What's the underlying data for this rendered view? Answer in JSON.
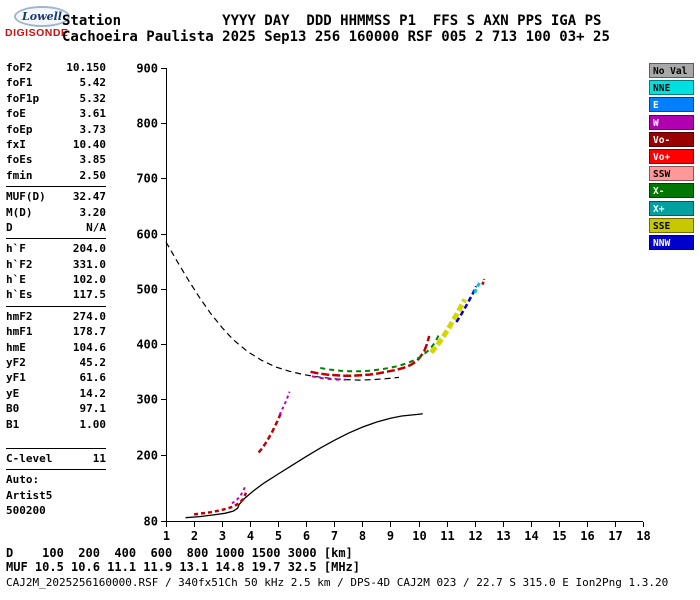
{
  "logo": {
    "name": "Lowell",
    "product": "DIGISONDE"
  },
  "header": {
    "fields_row": "Station            YYYY DAY  DDD HHMMSS P1  FFS S AXN PPS IGA PS",
    "values_row": "Cachoeira Paulista 2025 Sep13 256 160000 RSF 005 2 713 100 03+ 25"
  },
  "params": {
    "groups": [
      {
        "rows": [
          [
            "foF2",
            "10.150"
          ],
          [
            "foF1",
            "5.42"
          ],
          [
            "foF1p",
            "5.32"
          ],
          [
            "foE",
            "3.61"
          ],
          [
            "foEp",
            "3.73"
          ],
          [
            "fxI",
            "10.40"
          ],
          [
            "foEs",
            "3.85"
          ],
          [
            "fmin",
            "2.50"
          ]
        ]
      },
      {
        "rows": [
          [
            "MUF(D)",
            "32.47"
          ],
          [
            "M(D)",
            "3.20"
          ],
          [
            "D",
            "N/A"
          ]
        ]
      },
      {
        "rows": [
          [
            "h`F",
            "204.0"
          ],
          [
            "h`F2",
            "331.0"
          ],
          [
            "h`E",
            "102.0"
          ],
          [
            "h`Es",
            "117.5"
          ]
        ]
      },
      {
        "rows": [
          [
            "hmF2",
            "274.0"
          ],
          [
            "hmF1",
            "178.7"
          ],
          [
            "hmE",
            "104.6"
          ],
          [
            "yF2",
            "45.2"
          ],
          [
            "yF1",
            "61.6"
          ],
          [
            "yE",
            "14.2"
          ],
          [
            "B0",
            "97.1"
          ],
          [
            "B1",
            "1.00"
          ]
        ],
        "gap_after": true
      },
      {
        "rows": [
          [
            "C-level",
            "11"
          ]
        ]
      }
    ],
    "footer": [
      "Auto:",
      "Artist5",
      "500200"
    ]
  },
  "legend": {
    "items": [
      {
        "label": "No Val",
        "color": "#A8A8A8",
        "text": "#000000"
      },
      {
        "label": "NNE",
        "color": "#00E0E0",
        "text": "#000000"
      },
      {
        "label": "E",
        "color": "#0080FF",
        "text": "#FFFFFF"
      },
      {
        "label": "W",
        "color": "#B000B0",
        "text": "#FFFFFF"
      },
      {
        "label": "Vo-",
        "color": "#990000",
        "text": "#FFFFFF"
      },
      {
        "label": "Vo+",
        "color": "#FF0000",
        "text": "#FFFFFF"
      },
      {
        "label": "SSW",
        "color": "#FF9999",
        "text": "#000000"
      },
      {
        "label": "X-",
        "color": "#007700",
        "text": "#FFFFFF"
      },
      {
        "label": "X+",
        "color": "#00A0A0",
        "text": "#FFFFFF"
      },
      {
        "label": "SSE",
        "color": "#C8C800",
        "text": "#000000"
      },
      {
        "label": "NNW",
        "color": "#0000CC",
        "text": "#FFFFFF"
      }
    ]
  },
  "footer": {
    "d_row": "D    100  200  400  600  800 1000 1500 3000 [km]",
    "muf_row": "MUF 10.5 10.6 11.1 11.9 13.1 14.8 19.7 32.5 [MHz]",
    "status": "CAJ2M_2025256160000.RSF / 340fx51Ch 50 kHz 2.5 km / DPS-4D CAJ2M 023 / 22.7 S 315.0 E Ion2Png 1.3.20"
  },
  "chart_data": {
    "type": "scatter",
    "title": "Digisonde ionogram, Cachoeira Paulista, 2025 Sep13 256 160000",
    "xlabel": "[MHz]",
    "ylabel": "[km]",
    "xlim": [
      1,
      18
    ],
    "ylim": [
      80,
      900
    ],
    "x_ticks": [
      1,
      2,
      3,
      4,
      5,
      6,
      7,
      8,
      9,
      10,
      11,
      12,
      13,
      14,
      15,
      16,
      17,
      18
    ],
    "y_ticks": [
      80,
      200,
      300,
      400,
      500,
      600,
      700,
      800,
      900
    ],
    "grid": false,
    "legend_position": "right",
    "series": [
      {
        "name": "transmission-curve",
        "color": "#000000",
        "width": 1.2,
        "dash": "6 4",
        "points": [
          [
            1.0,
            585
          ],
          [
            1.4,
            550
          ],
          [
            1.8,
            516
          ],
          [
            2.2,
            484
          ],
          [
            2.6,
            455
          ],
          [
            3.0,
            430
          ],
          [
            3.4,
            408
          ],
          [
            3.9,
            387
          ],
          [
            4.4,
            371
          ],
          [
            4.9,
            359
          ],
          [
            5.4,
            351
          ],
          [
            5.9,
            345
          ],
          [
            6.4,
            341
          ],
          [
            6.9,
            338
          ],
          [
            7.4,
            336
          ],
          [
            7.9,
            335
          ],
          [
            8.4,
            336
          ],
          [
            8.9,
            338
          ],
          [
            9.3,
            340
          ]
        ]
      },
      {
        "name": "true-height-profile",
        "color": "#000000",
        "width": 1.3,
        "dash": "",
        "points": [
          [
            1.7,
            86
          ],
          [
            2.2,
            88
          ],
          [
            2.7,
            91
          ],
          [
            3.1,
            94
          ],
          [
            3.4,
            98
          ],
          [
            3.55,
            103
          ],
          [
            3.61,
            110
          ],
          [
            3.8,
            121
          ],
          [
            4.1,
            134
          ],
          [
            4.5,
            149
          ],
          [
            5.0,
            165
          ],
          [
            5.5,
            181
          ],
          [
            6.0,
            197
          ],
          [
            6.5,
            212
          ],
          [
            7.0,
            226
          ],
          [
            7.5,
            239
          ],
          [
            8.0,
            250
          ],
          [
            8.5,
            259
          ],
          [
            9.0,
            266
          ],
          [
            9.4,
            270
          ],
          [
            9.8,
            272
          ],
          [
            10.05,
            273.5
          ],
          [
            10.15,
            274
          ]
        ]
      },
      {
        "name": "e-trace-omode",
        "color": "#C00000",
        "width": 2.5,
        "dash": "4 3",
        "points": [
          [
            2.0,
            92
          ],
          [
            2.3,
            94
          ],
          [
            2.6,
            96
          ],
          [
            2.9,
            99
          ],
          [
            3.15,
            102
          ],
          [
            3.4,
            106
          ],
          [
            3.6,
            112
          ],
          [
            3.75,
            120
          ],
          [
            3.85,
            131
          ]
        ]
      },
      {
        "name": "e-trace-wmode",
        "color": "#C000C0",
        "width": 2,
        "dash": "3 3",
        "points": [
          [
            3.35,
            112
          ],
          [
            3.5,
            117
          ],
          [
            3.63,
            124
          ],
          [
            3.74,
            133
          ],
          [
            3.82,
            142
          ]
        ]
      },
      {
        "name": "f1-trace-omode",
        "color": "#C00000",
        "width": 2.5,
        "dash": "5 3",
        "points": [
          [
            4.3,
            204
          ],
          [
            4.42,
            211
          ],
          [
            4.54,
            220
          ],
          [
            4.66,
            230
          ],
          [
            4.78,
            241
          ],
          [
            4.9,
            253
          ],
          [
            5.0,
            264
          ],
          [
            5.1,
            276
          ]
        ]
      },
      {
        "name": "f1-trace-wmode",
        "color": "#C000C0",
        "width": 2,
        "dash": "3 3",
        "points": [
          [
            5.05,
            272
          ],
          [
            5.15,
            283
          ],
          [
            5.25,
            294
          ],
          [
            5.33,
            304
          ],
          [
            5.4,
            314
          ]
        ]
      },
      {
        "name": "f2-trace-omode",
        "color": "#C00000",
        "width": 2.5,
        "dash": "8 3",
        "points": [
          [
            6.15,
            350
          ],
          [
            6.45,
            347
          ],
          [
            6.75,
            345
          ],
          [
            7.05,
            344
          ],
          [
            7.35,
            343
          ],
          [
            7.65,
            343
          ],
          [
            7.95,
            344
          ],
          [
            8.25,
            345
          ],
          [
            8.55,
            347
          ],
          [
            8.85,
            350
          ],
          [
            9.15,
            353
          ],
          [
            9.45,
            357
          ],
          [
            9.7,
            362
          ],
          [
            9.9,
            368
          ],
          [
            10.05,
            376
          ],
          [
            10.2,
            387
          ],
          [
            10.3,
            400
          ],
          [
            10.38,
            415
          ]
        ]
      },
      {
        "name": "f2-trace-wmode",
        "color": "#C000C0",
        "width": 2,
        "dash": "4 4",
        "points": [
          [
            6.2,
            342
          ],
          [
            6.5,
            339
          ],
          [
            6.8,
            337
          ],
          [
            7.1,
            336
          ],
          [
            7.4,
            336
          ]
        ]
      },
      {
        "name": "f2-trace-xmode",
        "color": "#008000",
        "width": 2,
        "dash": "5 4",
        "points": [
          [
            6.5,
            357
          ],
          [
            6.85,
            354
          ],
          [
            7.2,
            352
          ],
          [
            7.55,
            351
          ],
          [
            7.9,
            351
          ],
          [
            8.25,
            352
          ],
          [
            8.6,
            354
          ],
          [
            8.95,
            357
          ],
          [
            9.3,
            361
          ],
          [
            9.6,
            366
          ],
          [
            9.9,
            372
          ],
          [
            10.15,
            380
          ],
          [
            10.4,
            391
          ],
          [
            10.6,
            404
          ],
          [
            10.75,
            420
          ]
        ]
      },
      {
        "name": "oblique-sse",
        "color": "#D5D500",
        "width": 5,
        "dash": "7 3",
        "points": [
          [
            10.45,
            385
          ],
          [
            10.6,
            394
          ],
          [
            10.75,
            404
          ],
          [
            10.9,
            415
          ],
          [
            11.05,
            427
          ],
          [
            11.2,
            440
          ],
          [
            11.35,
            453
          ],
          [
            11.5,
            467
          ],
          [
            11.65,
            481
          ]
        ]
      },
      {
        "name": "oblique-nnw",
        "color": "#0000D0",
        "width": 2.5,
        "dash": "5 3",
        "points": [
          [
            11.35,
            440
          ],
          [
            11.5,
            452
          ],
          [
            11.65,
            465
          ],
          [
            11.8,
            479
          ],
          [
            11.95,
            493
          ],
          [
            12.05,
            505
          ]
        ]
      },
      {
        "name": "oblique-nne",
        "color": "#00C8C8",
        "width": 3,
        "dash": "4 3",
        "points": [
          [
            12.0,
            493
          ],
          [
            12.1,
            504
          ],
          [
            12.2,
            515
          ]
        ]
      },
      {
        "name": "oblique-tip",
        "color": "#C00000",
        "width": 2.5,
        "dash": "3 2",
        "points": [
          [
            12.28,
            508
          ],
          [
            12.34,
            518
          ]
        ]
      }
    ]
  }
}
